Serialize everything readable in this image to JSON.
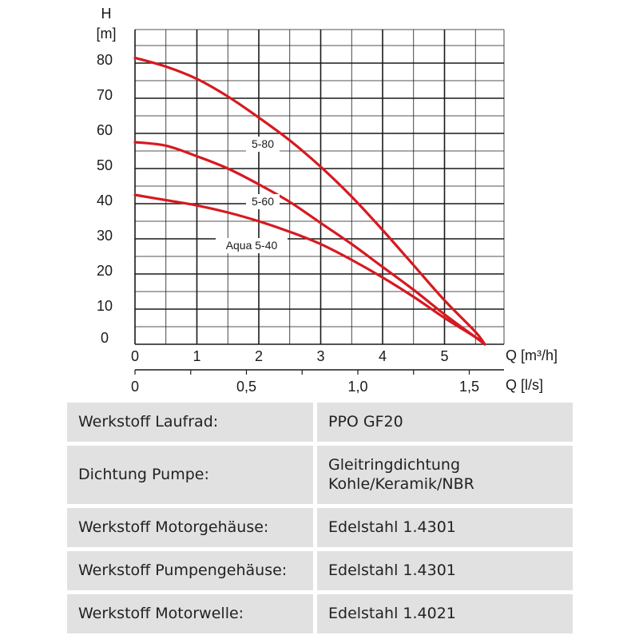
{
  "chart_data": {
    "type": "line",
    "ylabel_symbol": "H",
    "ylabel_unit": "[m]",
    "xlabel_primary": "Q [m³/h]",
    "xlabel_secondary": "Q [l/s]",
    "xlim": [
      0,
      6
    ],
    "ylim": [
      0,
      90
    ],
    "y_ticks": [
      "0",
      "10",
      "20",
      "30",
      "40",
      "50",
      "60",
      "70",
      "80"
    ],
    "x_ticks_primary": [
      "0",
      "1",
      "2",
      "3",
      "4",
      "5"
    ],
    "x_ticks_secondary": [
      "0",
      "0,5",
      "1,0",
      "1,5"
    ],
    "x_ticks_secondary_values": [
      0,
      0.5,
      1.0,
      1.5
    ],
    "grid": true,
    "series": [
      {
        "name": "5-80",
        "color": "#d71920",
        "x": [
          0,
          0.5,
          1,
          1.5,
          2,
          2.5,
          3,
          3.5,
          4,
          4.5,
          5,
          5.5,
          5.65
        ],
        "y": [
          81.5,
          79,
          75.5,
          70.5,
          64.5,
          58,
          50.5,
          42,
          32.5,
          22.5,
          12.5,
          3.5,
          0
        ]
      },
      {
        "name": "5-60",
        "color": "#d71920",
        "x": [
          0,
          0.5,
          1,
          1.5,
          2,
          2.5,
          3,
          3.5,
          4,
          4.5,
          5,
          5.5,
          5.65
        ],
        "y": [
          57.5,
          56.5,
          53.5,
          50,
          45.5,
          40.5,
          34.5,
          28.5,
          22,
          15.5,
          8.5,
          2,
          0
        ]
      },
      {
        "name": "Aqua 5-40",
        "color": "#d71920",
        "x": [
          0,
          0.5,
          1,
          1.5,
          2,
          2.5,
          3,
          3.5,
          4,
          4.5,
          5,
          5.5,
          5.65
        ],
        "y": [
          42.5,
          41,
          39.5,
          37.5,
          35,
          32,
          28.5,
          24,
          19,
          13.5,
          7.5,
          2,
          0
        ]
      }
    ]
  },
  "specs": {
    "rows": [
      {
        "label": "Werkstoff Laufrad:",
        "value": "PPO GF20",
        "value2": ""
      },
      {
        "label": "Dichtung Pumpe:",
        "value": "Gleitringdichtung",
        "value2": "Kohle/Keramik/NBR"
      },
      {
        "label": "Werkstoff Motorgehäuse:",
        "value": "Edelstahl 1.4301",
        "value2": ""
      },
      {
        "label": "Werkstoff Pumpengehäuse:",
        "value": "Edelstahl 1.4301",
        "value2": ""
      },
      {
        "label": "Werkstoff Motorwelle:",
        "value": "Edelstahl 1.4021",
        "value2": ""
      }
    ]
  }
}
